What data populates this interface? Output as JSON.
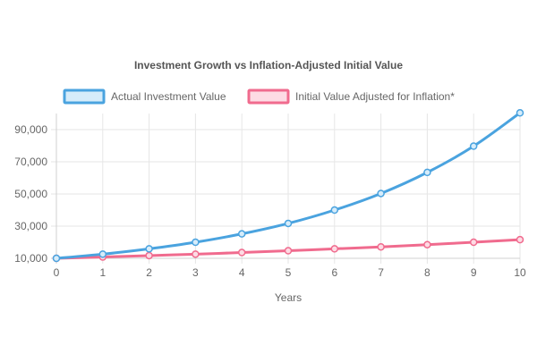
{
  "chart_data": {
    "type": "line",
    "title": "Investment Growth vs Inflation-Adjusted Initial Value",
    "xlabel": "Years",
    "ylabel": "",
    "x": [
      0,
      1,
      2,
      3,
      4,
      5,
      6,
      7,
      8,
      9,
      10
    ],
    "ylim": [
      10000,
      100000
    ],
    "yticks": [
      10000,
      30000,
      50000,
      70000,
      90000
    ],
    "ytick_labels": [
      "10,000",
      "30,000",
      "50,000",
      "70,000",
      "90,000"
    ],
    "grid": true,
    "legend_position": "top",
    "series": [
      {
        "name": "Actual Investment Value",
        "color": "#4aa3df",
        "fill": "#d6ecfa",
        "values": [
          10000,
          12600,
          15900,
          20000,
          25200,
          31700,
          40000,
          50300,
          63400,
          79700,
          100400
        ]
      },
      {
        "name": "Initial Value Adjusted for Inflation*",
        "color": "#f06b8e",
        "fill": "#fddbe4",
        "values": [
          10000,
          10800,
          11700,
          12600,
          13600,
          14700,
          15900,
          17100,
          18500,
          20000,
          21600
        ]
      }
    ]
  }
}
